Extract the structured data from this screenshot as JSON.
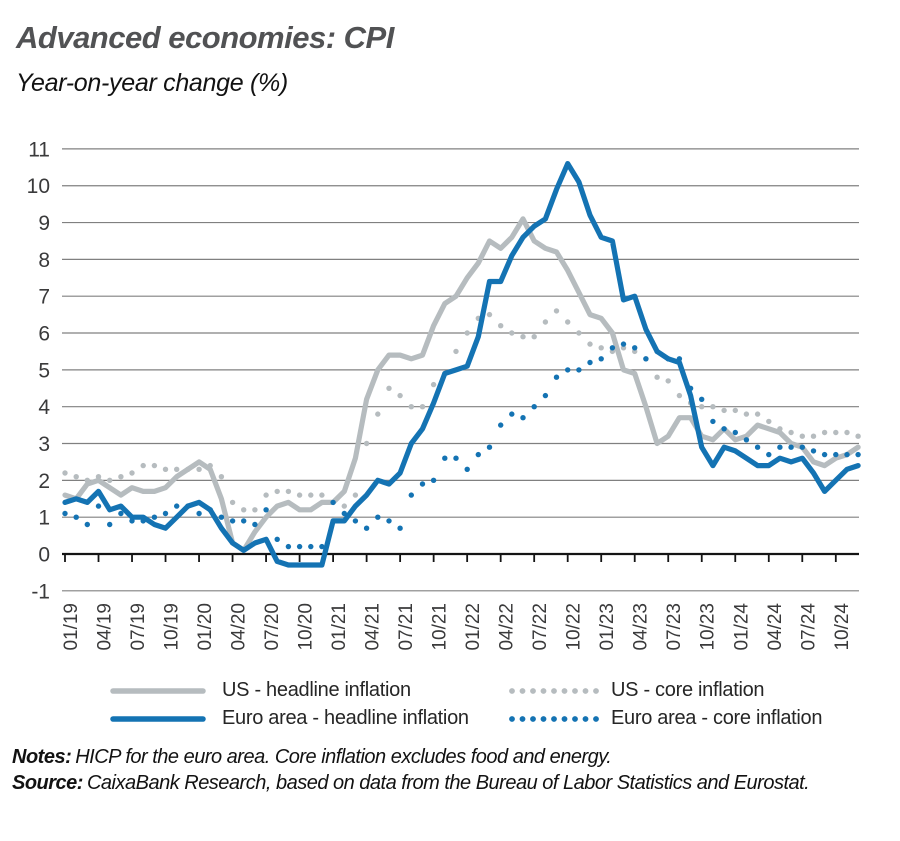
{
  "header": {
    "title": "Advanced economies: CPI",
    "subtitle": "Year-on-year change (%)"
  },
  "legend": [
    {
      "label": "US - headline inflation",
      "color": "#b6bcbf",
      "style": "solid"
    },
    {
      "label": "US - core inflation",
      "color": "#b6bcbf",
      "style": "dotted"
    },
    {
      "label": "Euro area - headline inflation",
      "color": "#1473b3",
      "style": "solid"
    },
    {
      "label": "Euro area - core inflation",
      "color": "#1473b3",
      "style": "dotted"
    }
  ],
  "notes": {
    "label": "Notes:",
    "text": "HICP for the euro area. Core inflation excludes food and energy."
  },
  "source": {
    "label": "Source:",
    "text": "CaixaBank Research, based on data from the Bureau of Labor Statistics and Eurostat."
  },
  "colors": {
    "blue": "#1473b3",
    "gray": "#b6bcbf",
    "grid": "#808080",
    "axis": "#141414",
    "tick_label": "#3a3a3b",
    "title": "#515254"
  },
  "chart_data": {
    "type": "line",
    "title": "Advanced economies: CPI",
    "ylabel": "Year-on-year change (%)",
    "frequency": "monthly",
    "x_start": "01/2019",
    "x_end": "12/2024",
    "ylim": [
      -1,
      11
    ],
    "y_ticks": [
      -1,
      0,
      1,
      2,
      3,
      4,
      5,
      6,
      7,
      8,
      9,
      10,
      11
    ],
    "x_tick_labels": [
      "01/19",
      "04/19",
      "07/19",
      "10/19",
      "01/20",
      "04/20",
      "07/20",
      "10/20",
      "01/21",
      "04/21",
      "07/21",
      "10/21",
      "01/22",
      "04/22",
      "07/22",
      "10/22",
      "01/23",
      "04/23",
      "07/23",
      "10/23",
      "01/24",
      "04/24",
      "07/24",
      "10/24"
    ],
    "x_tick_every_months": 3,
    "grid": "horizontal",
    "legend_position": "bottom",
    "series": [
      {
        "name": "US - headline inflation",
        "style": "solid",
        "color": "#b6bcbf",
        "values": [
          1.6,
          1.5,
          1.9,
          2.0,
          1.8,
          1.6,
          1.8,
          1.7,
          1.7,
          1.8,
          2.1,
          2.3,
          2.5,
          2.3,
          1.5,
          0.3,
          0.1,
          0.6,
          1.0,
          1.3,
          1.4,
          1.2,
          1.2,
          1.4,
          1.4,
          1.7,
          2.6,
          4.2,
          5.0,
          5.4,
          5.4,
          5.3,
          5.4,
          6.2,
          6.8,
          7.0,
          7.5,
          7.9,
          8.5,
          8.3,
          8.6,
          9.1,
          8.5,
          8.3,
          8.2,
          7.7,
          7.1,
          6.5,
          6.4,
          6.0,
          5.0,
          4.9,
          4.0,
          3.0,
          3.2,
          3.7,
          3.7,
          3.2,
          3.1,
          3.4,
          3.1,
          3.2,
          3.5,
          3.4,
          3.3,
          3.0,
          2.9,
          2.5,
          2.4,
          2.6,
          2.7,
          2.9
        ]
      },
      {
        "name": "US - core inflation",
        "style": "dotted",
        "color": "#b6bcbf",
        "values": [
          2.2,
          2.1,
          2.0,
          2.1,
          2.0,
          2.1,
          2.2,
          2.4,
          2.4,
          2.3,
          2.3,
          2.3,
          2.3,
          2.4,
          2.1,
          1.4,
          1.2,
          1.2,
          1.6,
          1.7,
          1.7,
          1.6,
          1.6,
          1.6,
          1.4,
          1.3,
          1.6,
          3.0,
          3.8,
          4.5,
          4.3,
          4.0,
          4.0,
          4.6,
          4.9,
          5.5,
          6.0,
          6.4,
          6.5,
          6.2,
          6.0,
          5.9,
          5.9,
          6.3,
          6.6,
          6.3,
          6.0,
          5.7,
          5.6,
          5.5,
          5.6,
          5.5,
          5.3,
          4.8,
          4.7,
          4.3,
          4.1,
          4.0,
          4.0,
          3.9,
          3.9,
          3.8,
          3.8,
          3.6,
          3.4,
          3.3,
          3.2,
          3.2,
          3.3,
          3.3,
          3.3,
          3.2
        ]
      },
      {
        "name": "Euro area - headline inflation",
        "style": "solid",
        "color": "#1473b3",
        "values": [
          1.4,
          1.5,
          1.4,
          1.7,
          1.2,
          1.3,
          1.0,
          1.0,
          0.8,
          0.7,
          1.0,
          1.3,
          1.4,
          1.2,
          0.7,
          0.3,
          0.1,
          0.3,
          0.4,
          -0.2,
          -0.3,
          -0.3,
          -0.3,
          -0.3,
          0.9,
          0.9,
          1.3,
          1.6,
          2.0,
          1.9,
          2.2,
          3.0,
          3.4,
          4.1,
          4.9,
          5.0,
          5.1,
          5.9,
          7.4,
          7.4,
          8.1,
          8.6,
          8.9,
          9.1,
          9.9,
          10.6,
          10.1,
          9.2,
          8.6,
          8.5,
          6.9,
          7.0,
          6.1,
          5.5,
          5.3,
          5.2,
          4.3,
          2.9,
          2.4,
          2.9,
          2.8,
          2.6,
          2.4,
          2.4,
          2.6,
          2.5,
          2.6,
          2.2,
          1.7,
          2.0,
          2.3,
          2.4
        ]
      },
      {
        "name": "Euro area - core inflation",
        "style": "dotted",
        "color": "#1473b3",
        "values": [
          1.1,
          1.0,
          0.8,
          1.3,
          0.8,
          1.1,
          0.9,
          0.9,
          1.0,
          1.1,
          1.3,
          1.3,
          1.1,
          1.2,
          1.0,
          0.9,
          0.9,
          0.8,
          1.2,
          0.4,
          0.2,
          0.2,
          0.2,
          0.2,
          1.4,
          1.1,
          0.9,
          0.7,
          1.0,
          0.9,
          0.7,
          1.6,
          1.9,
          2.0,
          2.6,
          2.6,
          2.3,
          2.7,
          2.9,
          3.5,
          3.8,
          3.7,
          4.0,
          4.3,
          4.8,
          5.0,
          5.0,
          5.2,
          5.3,
          5.6,
          5.7,
          5.6,
          5.3,
          5.5,
          5.3,
          5.3,
          4.5,
          4.2,
          3.6,
          3.4,
          3.3,
          3.1,
          2.9,
          2.7,
          2.9,
          2.9,
          2.9,
          2.8,
          2.7,
          2.7,
          2.7,
          2.7
        ]
      }
    ]
  }
}
